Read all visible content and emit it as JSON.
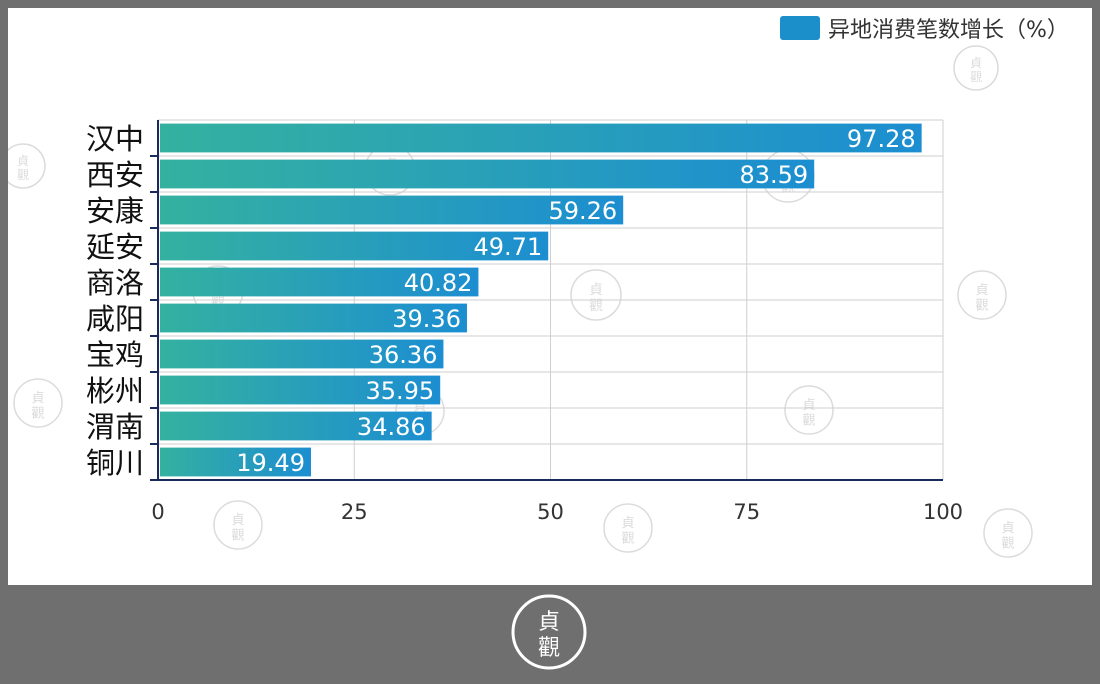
{
  "chart_data": {
    "type": "bar",
    "orientation": "horizontal",
    "categories": [
      "汉中",
      "西安",
      "安康",
      "延安",
      "商洛",
      "咸阳",
      "宝鸡",
      "彬州",
      "渭南",
      "铜川"
    ],
    "series": [
      {
        "name": "异地消费笔数增长（%）",
        "values": [
          97.28,
          83.59,
          59.26,
          49.71,
          40.82,
          39.36,
          36.36,
          35.95,
          34.86,
          19.49
        ],
        "labels": [
          "97.28",
          "83.59",
          "59.26",
          "49.71",
          "40.82",
          "39.36",
          "36.36",
          "35.95",
          "34.86",
          "19.49"
        ]
      }
    ],
    "xlim": [
      0,
      100
    ],
    "xticks": [
      0,
      25,
      50,
      75,
      100
    ],
    "grid": true,
    "legend_position": "top-right",
    "colors": {
      "bar_start": "#35b1a0",
      "bar_end": "#1c8ed1",
      "grid": "#cfcfcf",
      "axis": "#1b2a5c"
    }
  },
  "watermark": {
    "glyphs": [
      "貞",
      "觀"
    ]
  }
}
